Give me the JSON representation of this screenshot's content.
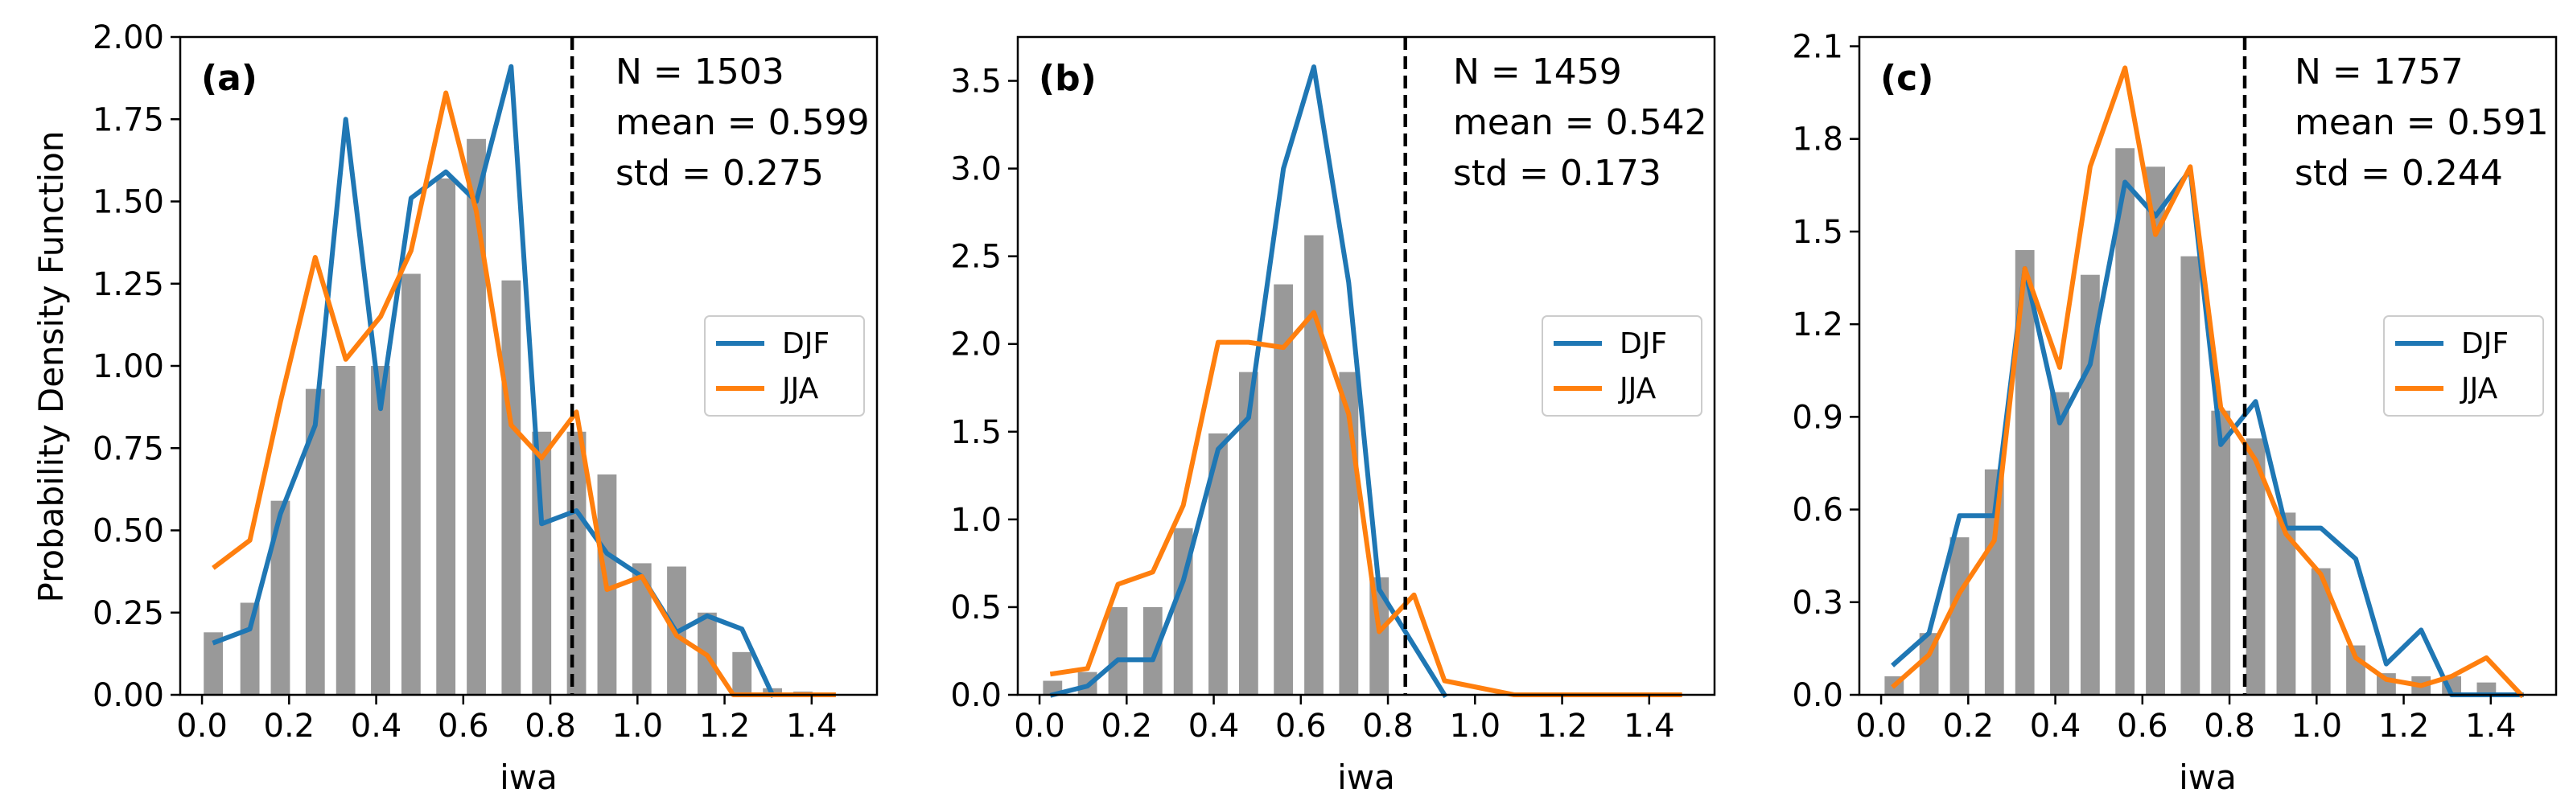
{
  "figure": {
    "ylabel": "Probability Density Function",
    "colors": {
      "bars": "#999999",
      "djf": "#1f77b4",
      "jja": "#ff7f0e",
      "threshold": "#000000"
    }
  },
  "chart_data": [
    {
      "type": "bar",
      "panel": "(a)",
      "xlabel": "iwa",
      "xlim": [
        -0.05,
        1.55
      ],
      "ylim": [
        0,
        2.0
      ],
      "xticks": [
        0.0,
        0.2,
        0.4,
        0.6,
        0.8,
        1.0,
        1.2,
        1.4
      ],
      "xtick_labels": [
        "0.0",
        "0.2",
        "0.4",
        "0.6",
        "0.8",
        "1.0",
        "1.2",
        "1.4"
      ],
      "yticks": [
        0,
        0.25,
        0.5,
        0.75,
        1.0,
        1.25,
        1.5,
        1.75,
        2.0
      ],
      "ytick_labels": [
        "0.00",
        "0.25",
        "0.50",
        "0.75",
        "1.00",
        "1.25",
        "1.50",
        "1.75",
        "2.00"
      ],
      "stats": [
        "N = 1503",
        "mean = 0.599",
        "std = 0.275"
      ],
      "threshold": 0.85,
      "bar_width": 0.044,
      "bars": {
        "x": [
          0.026,
          0.11,
          0.18,
          0.26,
          0.33,
          0.41,
          0.48,
          0.56,
          0.63,
          0.71,
          0.78,
          0.86,
          0.93,
          1.01,
          1.09,
          1.16,
          1.24,
          1.31,
          1.38
        ],
        "values": [
          0.19,
          0.28,
          0.59,
          0.93,
          1.0,
          1.0,
          1.28,
          1.57,
          1.69,
          1.26,
          0.8,
          0.8,
          0.67,
          0.4,
          0.39,
          0.25,
          0.13,
          0.02,
          0.01
        ]
      },
      "series": [
        {
          "name": "DJF",
          "x": [
            0.03,
            0.11,
            0.18,
            0.26,
            0.33,
            0.41,
            0.48,
            0.56,
            0.63,
            0.71,
            0.78,
            0.86,
            0.93,
            1.01,
            1.09,
            1.16,
            1.24,
            1.31
          ],
          "values": [
            0.16,
            0.2,
            0.55,
            0.82,
            1.75,
            0.87,
            1.51,
            1.59,
            1.5,
            1.91,
            0.52,
            0.56,
            0.43,
            0.36,
            0.19,
            0.24,
            0.2,
            0.0
          ]
        },
        {
          "name": "JJA",
          "x": [
            0.03,
            0.11,
            0.18,
            0.26,
            0.33,
            0.41,
            0.48,
            0.56,
            0.63,
            0.71,
            0.78,
            0.86,
            0.93,
            1.01,
            1.09,
            1.16,
            1.22,
            1.26,
            1.45
          ],
          "values": [
            0.39,
            0.47,
            0.89,
            1.33,
            1.02,
            1.15,
            1.35,
            1.83,
            1.47,
            0.82,
            0.72,
            0.86,
            0.32,
            0.36,
            0.18,
            0.12,
            0.0,
            0.0,
            0.0
          ]
        }
      ],
      "legend": [
        "DJF",
        "JJA"
      ],
      "legend_position": "center-right"
    },
    {
      "type": "bar",
      "panel": "(b)",
      "xlabel": "iwa",
      "xlim": [
        -0.05,
        1.55
      ],
      "ylim": [
        0,
        3.75
      ],
      "xticks": [
        0.0,
        0.2,
        0.4,
        0.6,
        0.8,
        1.0,
        1.2,
        1.4
      ],
      "xtick_labels": [
        "0.0",
        "0.2",
        "0.4",
        "0.6",
        "0.8",
        "1.0",
        "1.2",
        "1.4"
      ],
      "yticks": [
        0,
        0.5,
        1.0,
        1.5,
        2.0,
        2.5,
        3.0,
        3.5
      ],
      "ytick_labels": [
        "0.0",
        "0.5",
        "1.0",
        "1.5",
        "2.0",
        "2.5",
        "3.0",
        "3.5"
      ],
      "stats": [
        "N = 1459",
        "mean = 0.542",
        "std = 0.173"
      ],
      "threshold": 0.84,
      "bar_width": 0.044,
      "bars": {
        "x": [
          0.03,
          0.11,
          0.18,
          0.26,
          0.33,
          0.41,
          0.48,
          0.56,
          0.63,
          0.71,
          0.78
        ],
        "values": [
          0.08,
          0.13,
          0.5,
          0.5,
          0.95,
          1.49,
          1.84,
          2.34,
          2.62,
          1.84,
          0.67
        ]
      },
      "series": [
        {
          "name": "DJF",
          "x": [
            0.03,
            0.11,
            0.18,
            0.26,
            0.33,
            0.41,
            0.48,
            0.56,
            0.63,
            0.71,
            0.78,
            0.86,
            0.93
          ],
          "values": [
            0.0,
            0.05,
            0.2,
            0.2,
            0.65,
            1.4,
            1.58,
            3.0,
            3.58,
            2.35,
            0.6,
            0.28,
            0.0
          ]
        },
        {
          "name": "JJA",
          "x": [
            0.03,
            0.11,
            0.18,
            0.26,
            0.33,
            0.41,
            0.48,
            0.56,
            0.63,
            0.71,
            0.78,
            0.86,
            0.93,
            1.09,
            1.47
          ],
          "values": [
            0.12,
            0.15,
            0.63,
            0.7,
            1.08,
            2.01,
            2.01,
            1.98,
            2.18,
            1.6,
            0.36,
            0.57,
            0.08,
            0.0,
            0.0
          ]
        }
      ],
      "legend": [
        "DJF",
        "JJA"
      ],
      "legend_position": "center-right"
    },
    {
      "type": "bar",
      "panel": "(c)",
      "xlabel": "iwa",
      "xlim": [
        -0.05,
        1.55
      ],
      "ylim": [
        0,
        2.13
      ],
      "xticks": [
        0.0,
        0.2,
        0.4,
        0.6,
        0.8,
        1.0,
        1.2,
        1.4
      ],
      "xtick_labels": [
        "0.0",
        "0.2",
        "0.4",
        "0.6",
        "0.8",
        "1.0",
        "1.2",
        "1.4"
      ],
      "yticks": [
        0,
        0.3,
        0.6,
        0.9,
        1.2,
        1.5,
        1.8,
        2.1
      ],
      "ytick_labels": [
        "0.0",
        "0.3",
        "0.6",
        "0.9",
        "1.2",
        "1.5",
        "1.8",
        "2.1"
      ],
      "stats": [
        "N = 1757",
        "mean = 0.591",
        "std = 0.244"
      ],
      "threshold": 0.835,
      "bar_width": 0.044,
      "bars": {
        "x": [
          0.03,
          0.11,
          0.18,
          0.26,
          0.33,
          0.41,
          0.48,
          0.56,
          0.63,
          0.71,
          0.78,
          0.86,
          0.93,
          1.01,
          1.09,
          1.16,
          1.24,
          1.31,
          1.39
        ],
        "values": [
          0.06,
          0.2,
          0.51,
          0.73,
          1.44,
          0.98,
          1.36,
          1.77,
          1.71,
          1.42,
          0.92,
          0.83,
          0.59,
          0.41,
          0.16,
          0.07,
          0.06,
          0.06,
          0.04
        ]
      },
      "series": [
        {
          "name": "DJF",
          "x": [
            0.03,
            0.11,
            0.18,
            0.26,
            0.33,
            0.41,
            0.48,
            0.56,
            0.63,
            0.71,
            0.78,
            0.86,
            0.93,
            1.01,
            1.09,
            1.16,
            1.24,
            1.31,
            1.38,
            1.47
          ],
          "values": [
            0.1,
            0.2,
            0.58,
            0.58,
            1.38,
            0.88,
            1.07,
            1.66,
            1.55,
            1.7,
            0.81,
            0.95,
            0.54,
            0.54,
            0.44,
            0.1,
            0.21,
            0.0,
            0.0,
            0.0
          ]
        },
        {
          "name": "JJA",
          "x": [
            0.03,
            0.11,
            0.18,
            0.26,
            0.33,
            0.41,
            0.48,
            0.56,
            0.63,
            0.71,
            0.78,
            0.86,
            0.93,
            1.01,
            1.09,
            1.16,
            1.24,
            1.31,
            1.39,
            1.47
          ],
          "values": [
            0.03,
            0.13,
            0.33,
            0.5,
            1.38,
            1.06,
            1.71,
            2.03,
            1.49,
            1.71,
            0.93,
            0.76,
            0.52,
            0.39,
            0.12,
            0.05,
            0.03,
            0.06,
            0.12,
            0.0
          ]
        }
      ],
      "legend": [
        "DJF",
        "JJA"
      ],
      "legend_position": "center-right"
    }
  ]
}
